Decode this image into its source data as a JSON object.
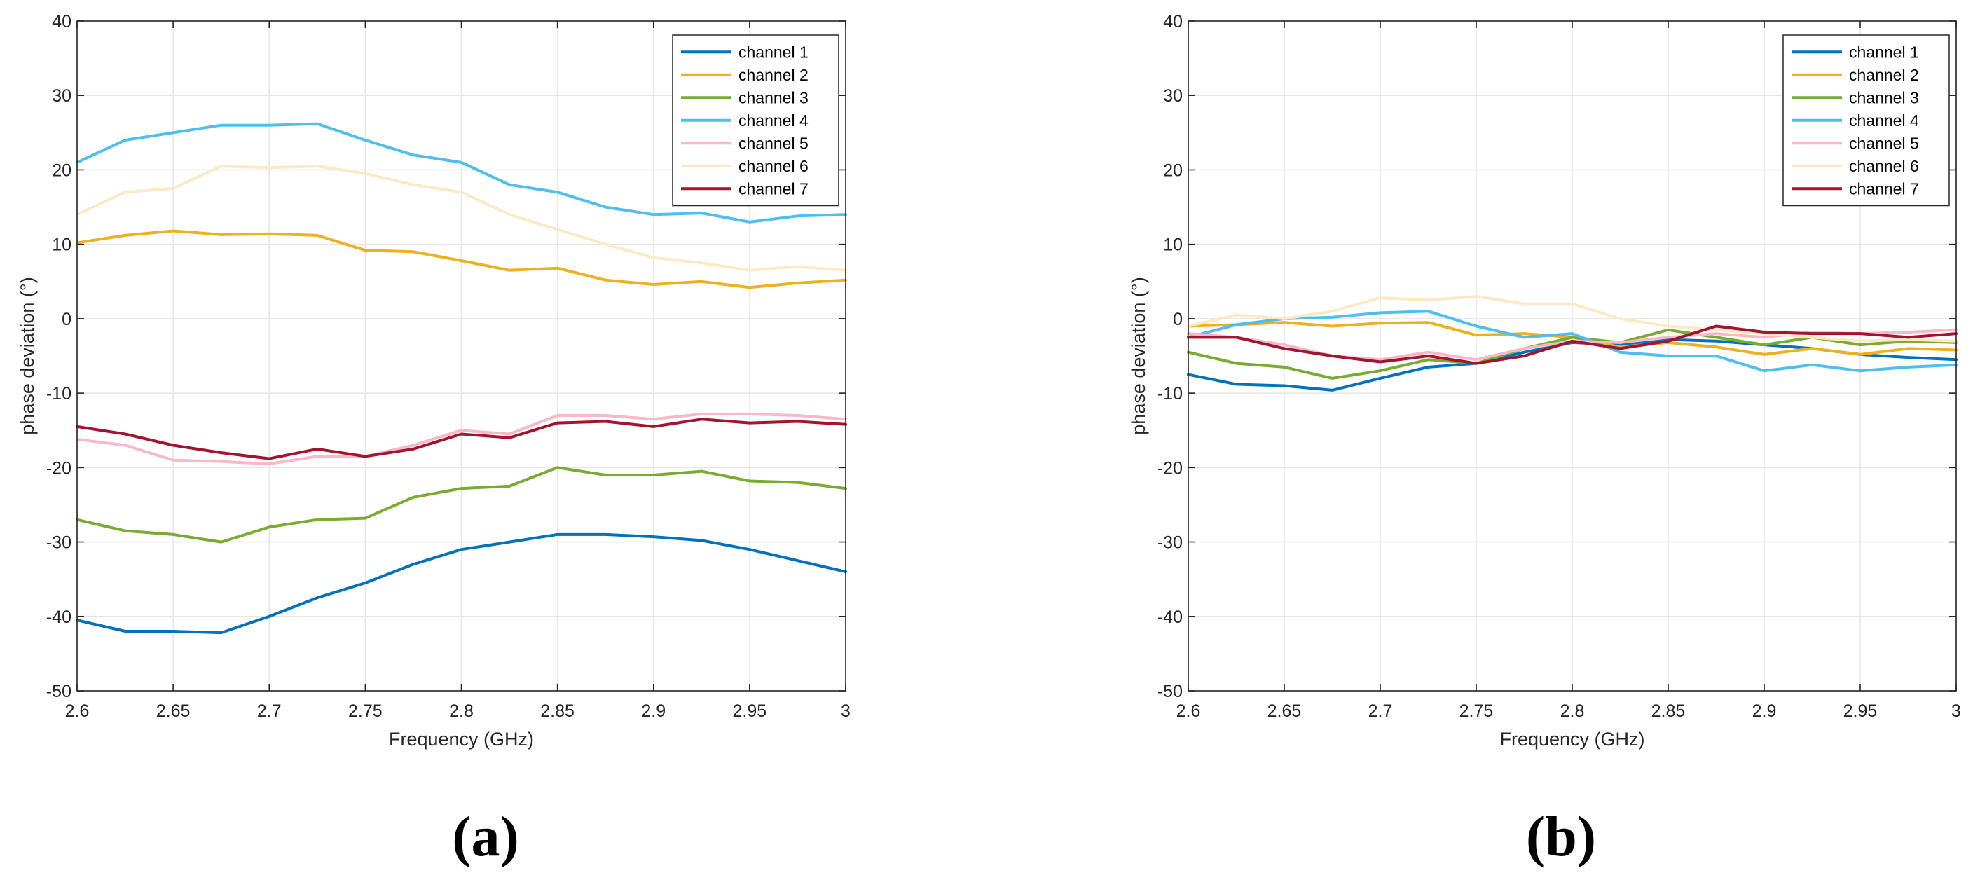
{
  "chart_data": [
    {
      "type": "line",
      "panel_label": "(a)",
      "title": "",
      "xlabel": "Frequency (GHz)",
      "ylabel": "phase deviation (°)",
      "xlim": [
        2.6,
        3.0
      ],
      "ylim": [
        -50,
        40
      ],
      "xticks": [
        2.6,
        2.65,
        2.7,
        2.75,
        2.8,
        2.85,
        2.9,
        2.95,
        3.0
      ],
      "xtick_labels": [
        "2.6",
        "2.65",
        "2.7",
        "2.75",
        "2.8",
        "2.85",
        "2.9",
        "2.95",
        "3"
      ],
      "yticks": [
        -50,
        -40,
        -30,
        -20,
        -10,
        0,
        10,
        20,
        30,
        40
      ],
      "ytick_labels": [
        "-50",
        "-40",
        "-30",
        "-20",
        "-10",
        "0",
        "10",
        "20",
        "30",
        "40"
      ],
      "grid": true,
      "legend_position": "top-right",
      "x": [
        2.6,
        2.625,
        2.65,
        2.675,
        2.7,
        2.725,
        2.75,
        2.775,
        2.8,
        2.825,
        2.85,
        2.875,
        2.9,
        2.925,
        2.95,
        2.975,
        3.0
      ],
      "series": [
        {
          "name": "channel 1",
          "color": "#0072BD",
          "values": [
            -40.5,
            -42.0,
            -42.0,
            -42.2,
            -40.0,
            -37.5,
            -35.5,
            -33.0,
            -31.0,
            -30.0,
            -29.0,
            -29.0,
            -29.3,
            -29.8,
            -31.0,
            -32.5,
            -34.0
          ]
        },
        {
          "name": "channel 2",
          "color": "#EDB120",
          "values": [
            10.2,
            11.2,
            11.8,
            11.3,
            11.4,
            11.2,
            9.2,
            9.0,
            7.8,
            6.5,
            6.8,
            5.2,
            4.6,
            5.0,
            4.2,
            4.8,
            5.2
          ]
        },
        {
          "name": "channel 3",
          "color": "#77AC30",
          "values": [
            -27.0,
            -28.5,
            -29.0,
            -30.0,
            -28.0,
            -27.0,
            -26.8,
            -24.0,
            -22.8,
            -22.5,
            -20.0,
            -21.0,
            -21.0,
            -20.5,
            -21.8,
            -22.0,
            -22.8
          ]
        },
        {
          "name": "channel 4",
          "color": "#4DBEEE",
          "values": [
            21.0,
            24.0,
            25.0,
            26.0,
            26.0,
            26.2,
            24.0,
            22.0,
            21.0,
            18.0,
            17.0,
            15.0,
            14.0,
            14.2,
            13.0,
            13.8,
            14.0
          ]
        },
        {
          "name": "channel 5",
          "color": "#F7B9C9",
          "values": [
            -16.2,
            -17.0,
            -19.0,
            -19.2,
            -19.5,
            -18.5,
            -18.5,
            -17.0,
            -15.0,
            -15.5,
            -13.0,
            -13.0,
            -13.5,
            -12.8,
            -12.8,
            -13.0,
            -13.5
          ]
        },
        {
          "name": "channel 6",
          "color": "#FDE9C4",
          "values": [
            14.0,
            17.0,
            17.5,
            20.5,
            20.3,
            20.5,
            19.5,
            18.0,
            17.0,
            14.0,
            12.0,
            10.0,
            8.2,
            7.5,
            6.5,
            7.0,
            6.5
          ]
        },
        {
          "name": "channel 7",
          "color": "#A2142F",
          "values": [
            -14.5,
            -15.5,
            -17.0,
            -18.0,
            -18.8,
            -17.5,
            -18.5,
            -17.5,
            -15.5,
            -16.0,
            -14.0,
            -13.8,
            -14.5,
            -13.5,
            -14.0,
            -13.8,
            -14.2
          ]
        }
      ]
    },
    {
      "type": "line",
      "panel_label": "(b)",
      "title": "",
      "xlabel": "Frequency (GHz)",
      "ylabel": "phase deviation (°)",
      "xlim": [
        2.6,
        3.0
      ],
      "ylim": [
        -50,
        40
      ],
      "xticks": [
        2.6,
        2.65,
        2.7,
        2.75,
        2.8,
        2.85,
        2.9,
        2.95,
        3.0
      ],
      "xtick_labels": [
        "2.6",
        "2.65",
        "2.7",
        "2.75",
        "2.8",
        "2.85",
        "2.9",
        "2.95",
        "3"
      ],
      "yticks": [
        -50,
        -40,
        -30,
        -20,
        -10,
        0,
        10,
        20,
        30,
        40
      ],
      "ytick_labels": [
        "-50",
        "-40",
        "-30",
        "-20",
        "-10",
        "0",
        "10",
        "20",
        "30",
        "40"
      ],
      "grid": true,
      "legend_position": "top-right",
      "x": [
        2.6,
        2.625,
        2.65,
        2.675,
        2.7,
        2.725,
        2.75,
        2.775,
        2.8,
        2.825,
        2.85,
        2.875,
        2.9,
        2.925,
        2.95,
        2.975,
        3.0
      ],
      "series": [
        {
          "name": "channel 1",
          "color": "#0072BD",
          "values": [
            -7.5,
            -8.8,
            -9.0,
            -9.6,
            -8.0,
            -6.5,
            -6.0,
            -4.5,
            -3.2,
            -3.5,
            -2.8,
            -3.0,
            -3.5,
            -4.0,
            -4.8,
            -5.2,
            -5.5
          ]
        },
        {
          "name": "channel 2",
          "color": "#EDB120",
          "values": [
            -1.0,
            -0.8,
            -0.5,
            -1.0,
            -0.6,
            -0.5,
            -2.2,
            -2.0,
            -2.5,
            -3.8,
            -3.2,
            -3.8,
            -4.8,
            -4.0,
            -4.8,
            -4.0,
            -4.2
          ]
        },
        {
          "name": "channel 3",
          "color": "#77AC30",
          "values": [
            -4.5,
            -6.0,
            -6.5,
            -8.0,
            -7.0,
            -5.5,
            -6.0,
            -4.0,
            -2.5,
            -3.2,
            -1.5,
            -2.5,
            -3.5,
            -2.5,
            -3.5,
            -3.0,
            -3.2
          ]
        },
        {
          "name": "channel 4",
          "color": "#4DBEEE",
          "values": [
            -2.5,
            -0.8,
            0.0,
            0.2,
            0.8,
            1.0,
            -1.0,
            -2.5,
            -2.0,
            -4.5,
            -5.0,
            -5.0,
            -7.0,
            -6.2,
            -7.0,
            -6.5,
            -6.2
          ]
        },
        {
          "name": "channel 5",
          "color": "#F7B9C9",
          "values": [
            -2.0,
            -2.5,
            -3.5,
            -5.0,
            -5.5,
            -4.5,
            -5.5,
            -4.0,
            -3.0,
            -3.2,
            -2.5,
            -2.0,
            -2.5,
            -1.8,
            -2.0,
            -1.8,
            -1.5
          ]
        },
        {
          "name": "channel 6",
          "color": "#FDE9C4",
          "values": [
            -1.0,
            0.5,
            0.0,
            1.0,
            2.8,
            2.5,
            3.0,
            2.0,
            2.0,
            0.0,
            -1.0,
            -1.5,
            -2.0,
            -2.5,
            -3.0,
            -2.8,
            -3.0
          ]
        },
        {
          "name": "channel 7",
          "color": "#A2142F",
          "values": [
            -2.5,
            -2.5,
            -4.0,
            -5.0,
            -5.8,
            -5.0,
            -6.0,
            -5.0,
            -3.0,
            -4.0,
            -3.0,
            -1.0,
            -1.8,
            -2.0,
            -2.0,
            -2.5,
            -2.0
          ]
        }
      ]
    }
  ]
}
